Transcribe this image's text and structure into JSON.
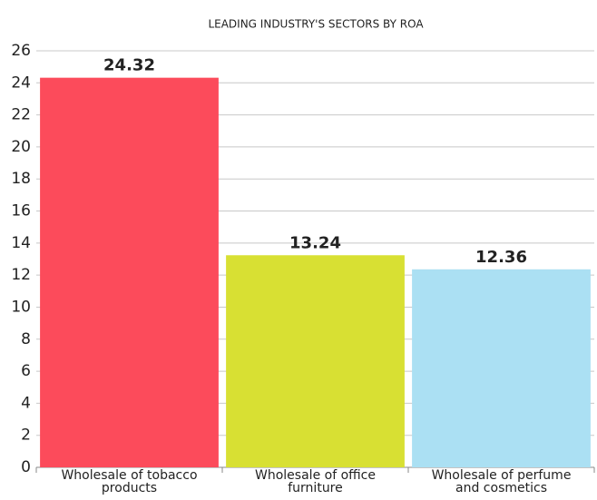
{
  "chart_data": {
    "type": "bar",
    "title": "LEADING INDUSTRY'S SECTORS BY ROA",
    "categories": [
      "Wholesale of tobacco products",
      "Wholesale of office furniture",
      "Wholesale of perfume and cosmetics"
    ],
    "values": [
      24.32,
      13.24,
      12.36
    ],
    "colors": [
      "#fc4b5b",
      "#d8e033",
      "#abe0f3"
    ],
    "ylim": [
      0,
      26
    ],
    "yticks": [
      0,
      2,
      4,
      6,
      8,
      10,
      12,
      14,
      16,
      18,
      20,
      22,
      24,
      26
    ],
    "grid": true
  }
}
